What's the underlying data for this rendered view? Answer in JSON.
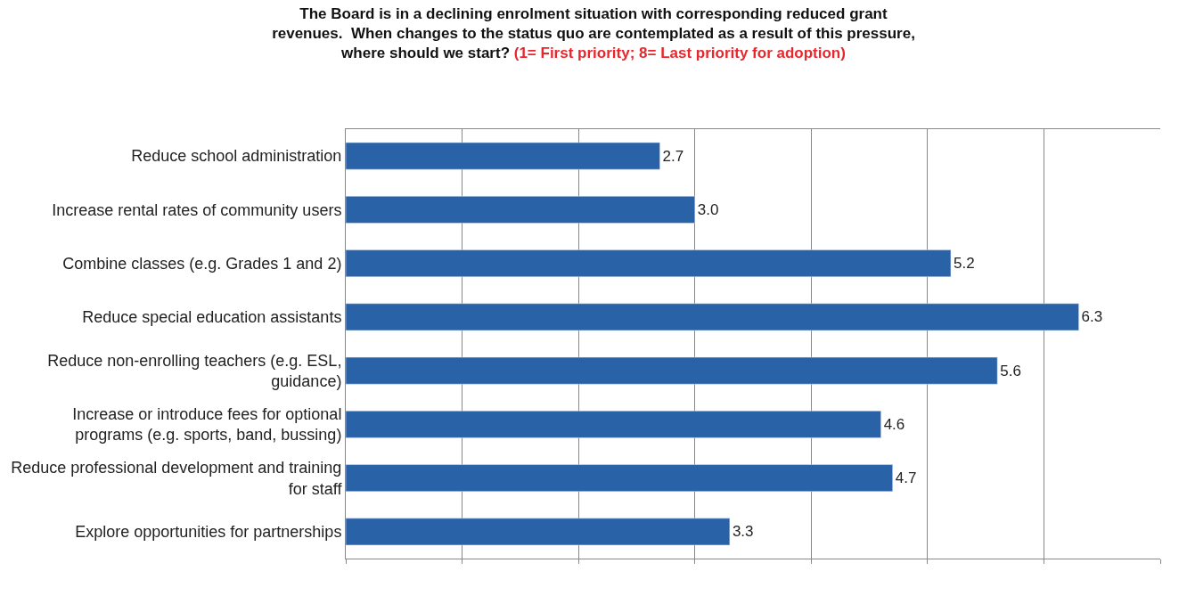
{
  "chart_data": {
    "type": "bar",
    "orientation": "horizontal",
    "title": "The Board is in a declining enrolment situation with corresponding reduced grant\nrevenues.  When changes to the status quo are contemplated as a result of this pressure,\nwhere should we start?",
    "subtitle": "(1= First priority; 8= Last priority for adoption)",
    "categories": [
      "Reduce school administration",
      "Increase rental rates of community users",
      "Combine classes (e.g. Grades 1 and 2)",
      "Reduce special education assistants",
      "Reduce non-enrolling teachers (e.g. ESL,\nguidance)",
      "Increase or introduce fees for optional\nprograms (e.g. sports, band, bussing)",
      "Reduce professional development and training\nfor staff",
      "Explore opportunities for partnerships"
    ],
    "values": [
      2.7,
      3.0,
      5.2,
      6.3,
      5.6,
      4.6,
      4.7,
      3.3
    ],
    "value_labels": [
      "2.7",
      "3.0",
      "5.2",
      "6.3",
      "5.6",
      "4.6",
      "4.7",
      "3.3"
    ],
    "color": "#2a62a8",
    "xlim": [
      0,
      7
    ],
    "xticks": [
      {
        "value": 0,
        "label": null
      },
      {
        "value": 1,
        "label": null
      },
      {
        "value": 2,
        "label": null
      },
      {
        "value": 3,
        "label": null
      },
      {
        "value": 4,
        "label": null
      },
      {
        "value": 5,
        "label": null
      },
      {
        "value": 6,
        "label": null
      },
      {
        "value": 7,
        "label": null
      }
    ],
    "grid": "x",
    "tick_labels": "y",
    "legend": false
  }
}
